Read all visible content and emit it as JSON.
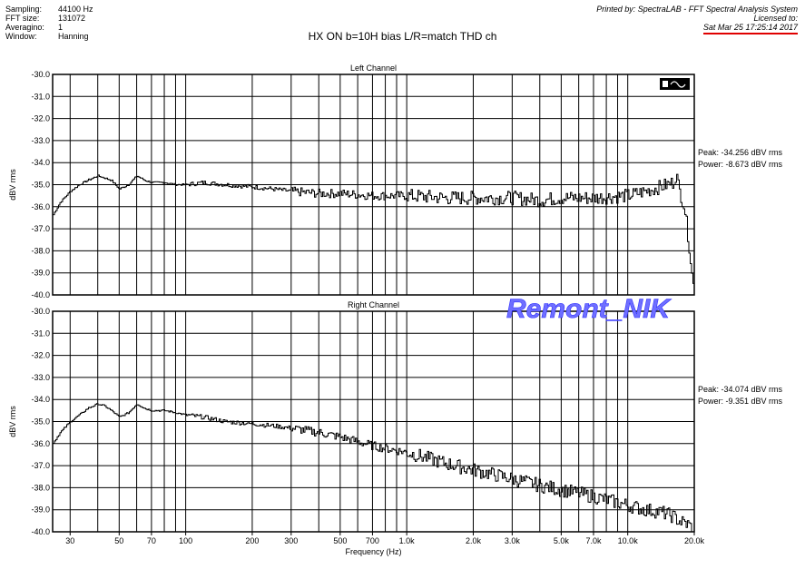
{
  "header": {
    "left": [
      {
        "key": "Sampling:",
        "value": "44100 Hz"
      },
      {
        "key": "FFT size:",
        "value": "131072"
      },
      {
        "key": "Averagino:",
        "value": "1"
      },
      {
        "key": "Window:",
        "value": "Hanning"
      }
    ],
    "printed_by": "Printed by: SpectraLAB - FFT Spectral Analysis System",
    "licensed_to": "Licensed to:",
    "timestamp": "Sat Mar 25 17:25:14 2017"
  },
  "title": "HX ON  b=10H  bias L/R=match THD ch",
  "watermark": "Remont_NIK",
  "toolbar_icon": "spectrum-view-icon",
  "colors": {
    "accent": "#e00000",
    "watermark": "#6f6fff",
    "trace": "#000000"
  },
  "chart_data": [
    {
      "type": "line",
      "title": "Left Channel",
      "ylabel": "dBV rms",
      "xscale": "log",
      "xlim": [
        25,
        20000
      ],
      "ylim": [
        -40,
        -30
      ],
      "yticks": [
        "-30.0",
        "-31.0",
        "-32.0",
        "-33.0",
        "-34.0",
        "-35.0",
        "-36.0",
        "-37.0",
        "-38.0",
        "-39.0",
        "-40.0"
      ],
      "grid": true,
      "peak_label": "Peak: -34.256 dBV rms",
      "power_label": "Power: -8.673 dBV rms",
      "series": [
        {
          "x": [
            25,
            27,
            30,
            33,
            36,
            40,
            43,
            46,
            50,
            55,
            60,
            65,
            70,
            80,
            90,
            100,
            120,
            150,
            200,
            250,
            300,
            400,
            500,
            700,
            1000,
            1500,
            2000,
            3000,
            4000,
            5000,
            7000,
            10000,
            12000,
            14000,
            15000,
            16000,
            16500,
            17000,
            18000,
            19000,
            19500,
            20000
          ],
          "y": [
            -36.4,
            -35.8,
            -35.3,
            -35.0,
            -34.8,
            -34.6,
            -34.7,
            -34.8,
            -35.2,
            -35.0,
            -34.6,
            -34.8,
            -34.9,
            -34.9,
            -35.0,
            -35.0,
            -34.9,
            -35.0,
            -35.1,
            -35.2,
            -35.3,
            -35.4,
            -35.4,
            -35.5,
            -35.5,
            -35.6,
            -35.6,
            -35.6,
            -35.7,
            -35.6,
            -35.6,
            -35.5,
            -35.3,
            -35.1,
            -35.0,
            -34.9,
            -34.5,
            -35.2,
            -36.0,
            -38.0,
            -39.2,
            -40.0
          ]
        }
      ]
    },
    {
      "type": "line",
      "title": "Right Channel",
      "ylabel": "dBV rms",
      "xlabel": "Frequency (Hz)",
      "xscale": "log",
      "xlim": [
        25,
        20000
      ],
      "ylim": [
        -40,
        -30
      ],
      "yticks": [
        "-30.0",
        "-31.0",
        "-32.0",
        "-33.0",
        "-34.0",
        "-35.0",
        "-36.0",
        "-37.0",
        "-38.0",
        "-39.0",
        "-40.0"
      ],
      "xticks": [
        {
          "v": 30,
          "t": "30"
        },
        {
          "v": 50,
          "t": "50"
        },
        {
          "v": 70,
          "t": "70"
        },
        {
          "v": 100,
          "t": "100"
        },
        {
          "v": 200,
          "t": "200"
        },
        {
          "v": 300,
          "t": "300"
        },
        {
          "v": 500,
          "t": "500"
        },
        {
          "v": 700,
          "t": "700"
        },
        {
          "v": 1000,
          "t": "1.0k"
        },
        {
          "v": 2000,
          "t": "2.0k"
        },
        {
          "v": 3000,
          "t": "3.0k"
        },
        {
          "v": 5000,
          "t": "5.0k"
        },
        {
          "v": 7000,
          "t": "7.0k"
        },
        {
          "v": 10000,
          "t": "10.0k"
        },
        {
          "v": 20000,
          "t": "20.0k"
        }
      ],
      "grid": true,
      "peak_label": "Peak: -34.074 dBV rms",
      "power_label": "Power: -9.351 dBV rms",
      "series": [
        {
          "x": [
            25,
            27,
            30,
            33,
            36,
            40,
            43,
            46,
            50,
            55,
            60,
            65,
            70,
            80,
            90,
            100,
            120,
            150,
            200,
            250,
            300,
            400,
            500,
            700,
            1000,
            1500,
            2000,
            3000,
            4000,
            5000,
            7000,
            10000,
            12000,
            14000,
            15000,
            16000,
            17000,
            18000,
            19000,
            19500
          ],
          "y": [
            -36.0,
            -35.5,
            -35.0,
            -34.7,
            -34.4,
            -34.2,
            -34.3,
            -34.5,
            -34.8,
            -34.6,
            -34.2,
            -34.4,
            -34.5,
            -34.5,
            -34.6,
            -34.7,
            -34.8,
            -35.0,
            -35.1,
            -35.2,
            -35.3,
            -35.5,
            -35.7,
            -36.1,
            -36.4,
            -36.9,
            -37.2,
            -37.6,
            -37.9,
            -38.1,
            -38.4,
            -38.8,
            -39.0,
            -39.1,
            -39.2,
            -39.3,
            -39.5,
            -39.6,
            -39.7,
            -39.9
          ]
        }
      ]
    }
  ]
}
